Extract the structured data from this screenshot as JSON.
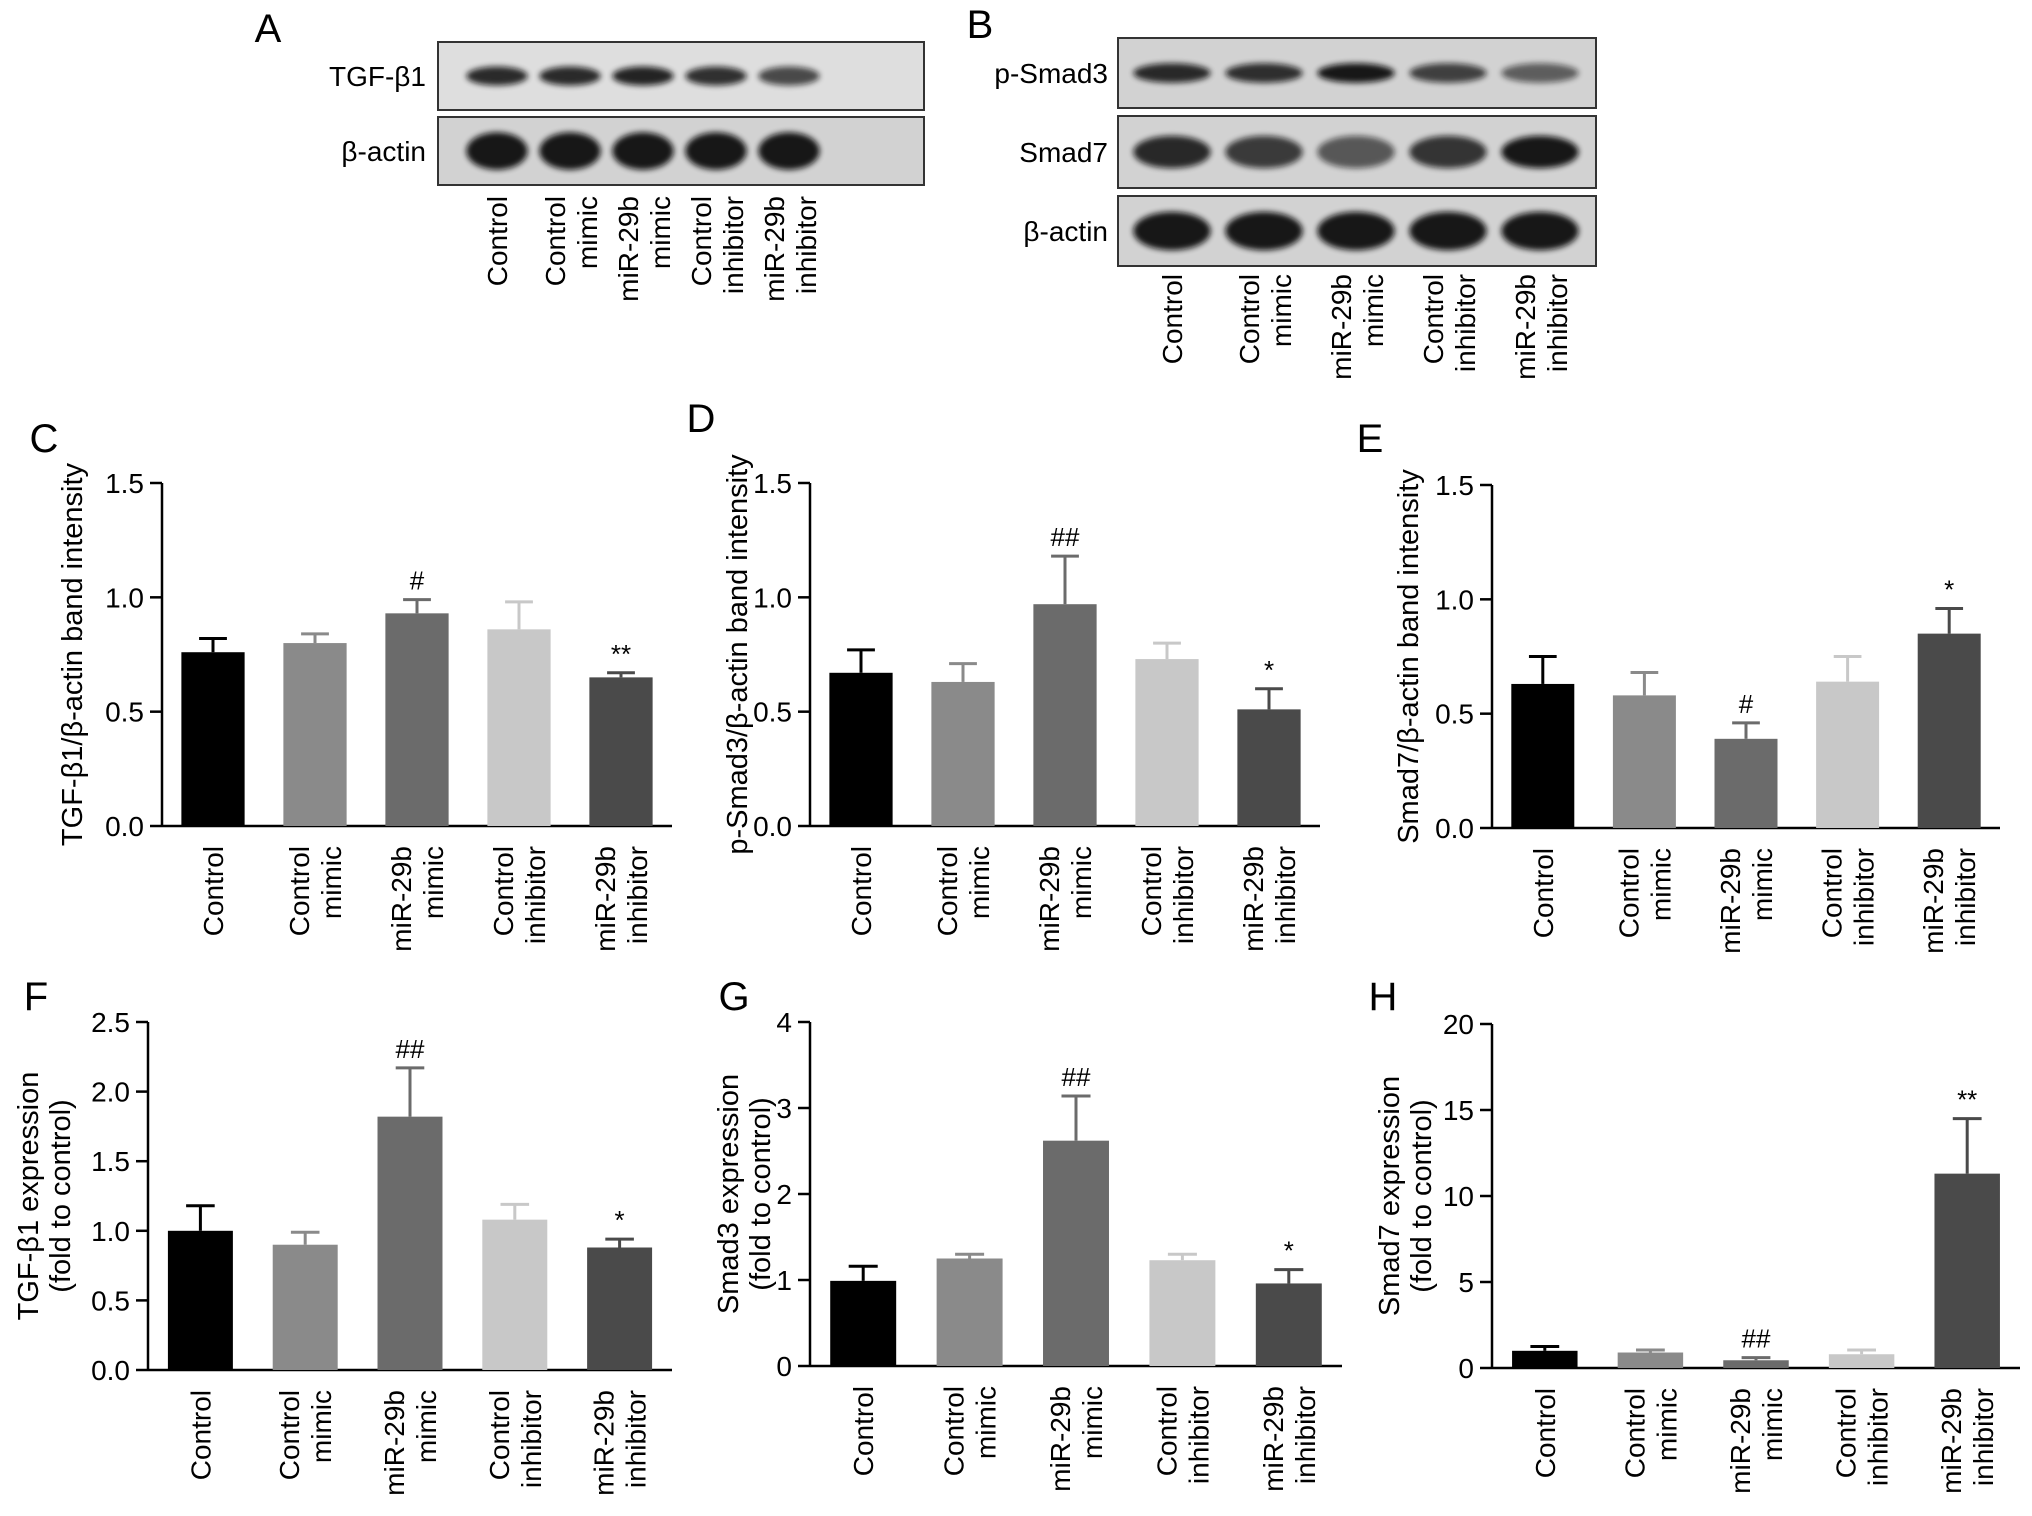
{
  "categories": [
    [
      "Control"
    ],
    [
      "Control",
      "mimic"
    ],
    [
      "miR-29b",
      "mimic"
    ],
    [
      "Control",
      "inhibitor"
    ],
    [
      "miR-29b",
      "inhibitor"
    ]
  ],
  "bar_colors": [
    "#000000",
    "#8a8a8a",
    "#6b6b6b",
    "#c8c8c8",
    "#4a4a4a"
  ],
  "blots": [
    {
      "letter": "A",
      "rows": [
        "TGF-β1",
        "β-actin"
      ],
      "lanes": [
        [
          "Control"
        ],
        [
          "Control",
          "mimic"
        ],
        [
          "miR-29b",
          "mimic"
        ],
        [
          "Control",
          "inhibitor"
        ],
        [
          "miR-29b",
          "inhibitor"
        ]
      ]
    },
    {
      "letter": "B",
      "rows": [
        "p-Smad3",
        "Smad7",
        "β-actin"
      ],
      "lanes": [
        [
          "Control"
        ],
        [
          "Control",
          "mimic"
        ],
        [
          "miR-29b",
          "mimic"
        ],
        [
          "Control",
          "inhibitor"
        ],
        [
          "miR-29b",
          "inhibitor"
        ]
      ]
    }
  ],
  "chart_data": [
    {
      "type": "bar",
      "letter": "C",
      "ylabel": [
        "TGF-β1/β-actin band intensity"
      ],
      "ylim": [
        0,
        1.5
      ],
      "yticks": [
        "0.0",
        "0.5",
        "1.0",
        "1.5"
      ],
      "values": [
        0.76,
        0.8,
        0.93,
        0.86,
        0.65
      ],
      "errors": [
        0.06,
        0.04,
        0.06,
        0.12,
        0.02
      ],
      "annotations": [
        "",
        "",
        "#",
        "",
        "**"
      ]
    },
    {
      "type": "bar",
      "letter": "D",
      "ylabel": [
        "p-Smad3/β-actin band intensity"
      ],
      "ylim": [
        0,
        1.5
      ],
      "yticks": [
        "0.0",
        "0.5",
        "1.0",
        "1.5"
      ],
      "values": [
        0.67,
        0.63,
        0.97,
        0.73,
        0.51
      ],
      "errors": [
        0.1,
        0.08,
        0.21,
        0.07,
        0.09
      ],
      "annotations": [
        "",
        "",
        "##",
        "",
        "*"
      ]
    },
    {
      "type": "bar",
      "letter": "E",
      "ylabel": [
        "Smad7/β-actin band intensity"
      ],
      "ylim": [
        0,
        1.5
      ],
      "yticks": [
        "0.0",
        "0.5",
        "1.0",
        "1.5"
      ],
      "values": [
        0.63,
        0.58,
        0.39,
        0.64,
        0.85
      ],
      "errors": [
        0.12,
        0.1,
        0.07,
        0.11,
        0.11
      ],
      "annotations": [
        "",
        "",
        "#",
        "",
        "*"
      ]
    },
    {
      "type": "bar",
      "letter": "F",
      "ylabel": [
        "TGF-β1 expression",
        "(fold to control)"
      ],
      "ylim": [
        0,
        2.5
      ],
      "yticks": [
        "0.0",
        "0.5",
        "1.0",
        "1.5",
        "2.0",
        "2.5"
      ],
      "values": [
        1.0,
        0.9,
        1.82,
        1.08,
        0.88
      ],
      "errors": [
        0.18,
        0.09,
        0.35,
        0.11,
        0.06
      ],
      "annotations": [
        "",
        "",
        "##",
        "",
        "*"
      ]
    },
    {
      "type": "bar",
      "letter": "G",
      "ylabel": [
        "Smad3 expression",
        "(fold to control)"
      ],
      "ylim": [
        0,
        4
      ],
      "yticks": [
        "0",
        "1",
        "2",
        "3",
        "4"
      ],
      "values": [
        0.99,
        1.25,
        2.62,
        1.23,
        0.96
      ],
      "errors": [
        0.17,
        0.05,
        0.52,
        0.07,
        0.16
      ],
      "annotations": [
        "",
        "",
        "##",
        "",
        "*"
      ]
    },
    {
      "type": "bar",
      "letter": "H",
      "ylabel": [
        "Smad7 expression",
        "(fold to control)"
      ],
      "ylim": [
        0,
        20
      ],
      "yticks": [
        "0",
        "5",
        "10",
        "15",
        "20"
      ],
      "values": [
        1.0,
        0.9,
        0.45,
        0.8,
        11.3
      ],
      "errors": [
        0.25,
        0.15,
        0.15,
        0.25,
        3.2
      ],
      "annotations": [
        "",
        "",
        "##",
        "",
        "**"
      ]
    }
  ]
}
